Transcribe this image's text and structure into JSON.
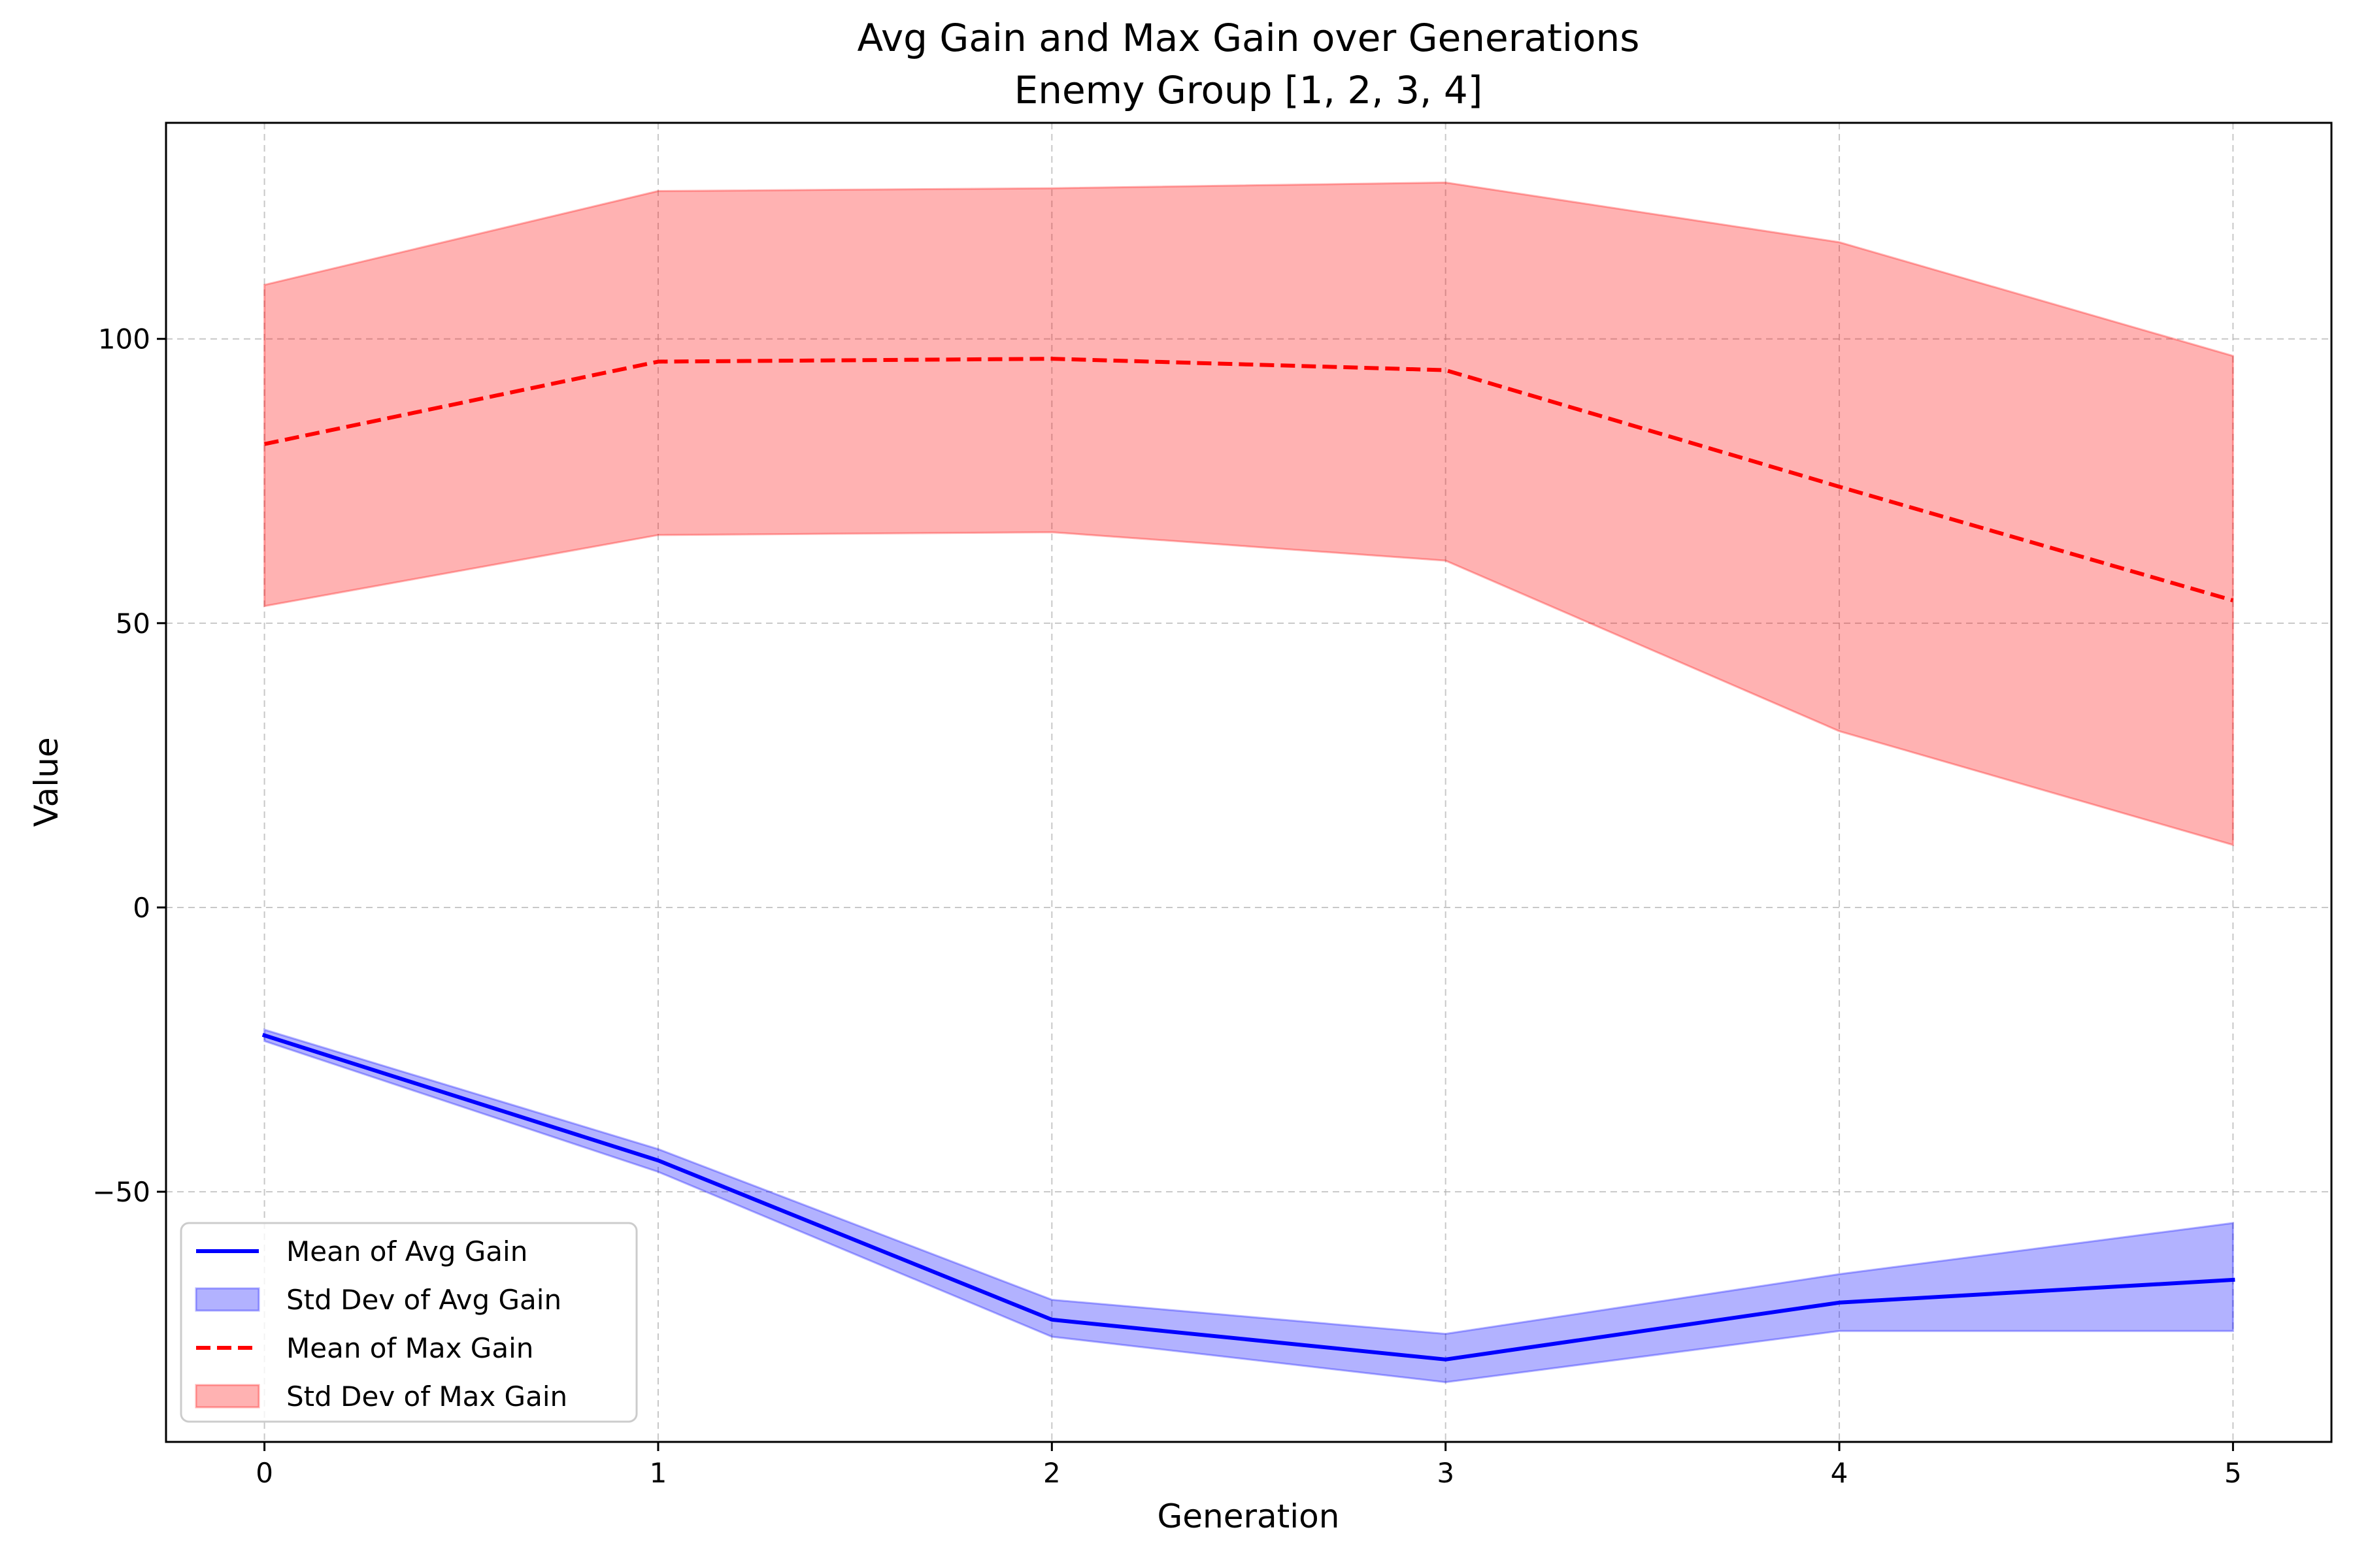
{
  "chart_data": {
    "type": "line",
    "title": "Avg Gain and Max Gain over Generations",
    "subtitle": "Enemy Group [1, 2, 3, 4]",
    "xlabel": "Generation",
    "ylabel": "Value",
    "xlim": [
      -0.25,
      5.25
    ],
    "ylim": [
      -94,
      138
    ],
    "xticks": [
      0,
      1,
      2,
      3,
      4,
      5
    ],
    "xtick_labels": [
      "0",
      "1",
      "2",
      "3",
      "4",
      "5"
    ],
    "yticks": [
      -50,
      0,
      50,
      100
    ],
    "ytick_labels": [
      "−50",
      "0",
      "50",
      "100"
    ],
    "grid": true,
    "legend_position": "bottom-left",
    "x": [
      0,
      1,
      2,
      3,
      4,
      5
    ],
    "series": [
      {
        "name": "Mean of Avg Gain",
        "kind": "line",
        "style": "solid",
        "color": "#0000ff",
        "values": [
          -22.5,
          -44.5,
          -72.5,
          -79.5,
          -69.5,
          -65.5
        ]
      },
      {
        "name": "Std Dev of Avg Gain",
        "kind": "band",
        "color": "#0000ff",
        "lower": [
          -23.5,
          -46.5,
          -75.5,
          -83.5,
          -74.5,
          -74.5
        ],
        "upper": [
          -21.5,
          -42.5,
          -69.0,
          -75.0,
          -64.5,
          -55.5
        ]
      },
      {
        "name": "Mean of Max Gain",
        "kind": "line",
        "style": "dashed",
        "color": "#ff0000",
        "values": [
          81.5,
          96.0,
          96.5,
          94.5,
          74.0,
          54.0
        ]
      },
      {
        "name": "Std Dev of Max Gain",
        "kind": "band",
        "color": "#ff0000",
        "lower": [
          53.0,
          65.5,
          66.0,
          61.0,
          31.0,
          11.0
        ],
        "upper": [
          109.5,
          126.0,
          126.5,
          127.5,
          117.0,
          97.0
        ]
      }
    ]
  }
}
